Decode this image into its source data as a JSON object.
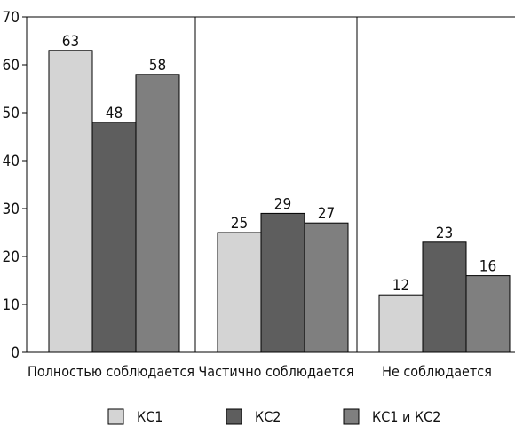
{
  "chart_data": {
    "type": "bar",
    "title": "",
    "xlabel": "",
    "ylabel": "",
    "categories": [
      "Полностью соблюдается",
      "Частично соблюдается",
      "Не соблюдается"
    ],
    "series": [
      {
        "name": "КС1",
        "values": [
          63,
          25,
          12
        ],
        "color": "#d4d4d4"
      },
      {
        "name": "КС2",
        "values": [
          48,
          29,
          23
        ],
        "color": "#5e5e5e"
      },
      {
        "name": "КС1 и КС2",
        "values": [
          58,
          27,
          16
        ],
        "color": "#7f7f7f"
      }
    ],
    "ylim": [
      0,
      70
    ],
    "yticks": [
      0,
      10,
      20,
      30,
      40,
      50,
      60,
      70
    ],
    "grid": "vertical-category-separators",
    "legend": "bottom"
  }
}
